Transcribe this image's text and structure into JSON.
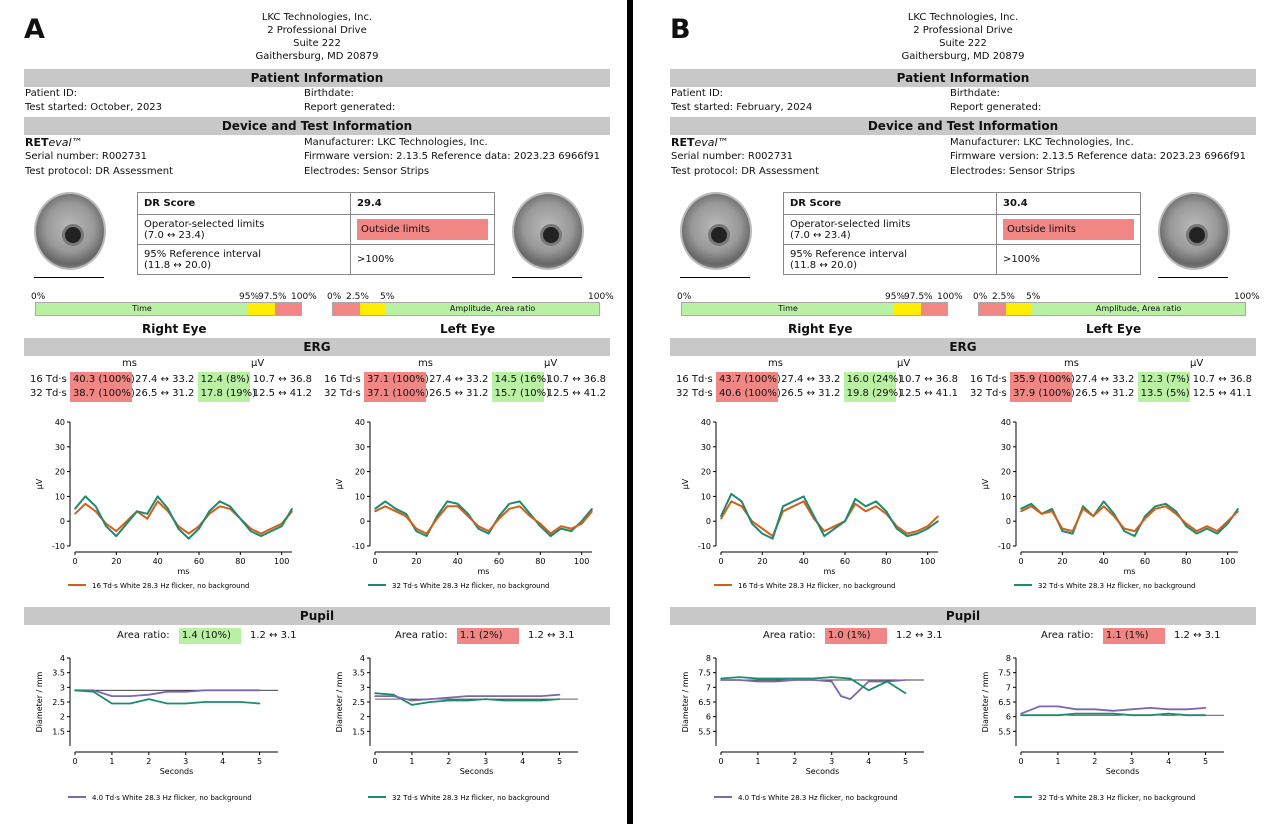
{
  "company": {
    "name": "LKC Technologies, Inc.",
    "street": "2 Professional Drive",
    "suite": "Suite 222",
    "city": "Gaithersburg, MD 20879"
  },
  "sections": {
    "patient": "Patient Information",
    "device": "Device and Test Information",
    "erg": "ERG",
    "pupil": "Pupil"
  },
  "labels": {
    "patient_id": "Patient ID:",
    "birthdate": "Birthdate:",
    "report_generated": "Report generated:",
    "device_ret": "RET",
    "device_eval": "eval",
    "device_tm": "™",
    "manufacturer": "Manufacturer: LKC Technologies, Inc.",
    "serial": "Serial number: R002731",
    "firmware": "Firmware version: 2.13.5 Reference data: 2023.23 6966f91",
    "protocol": "Test protocol: DR Assessment",
    "electrodes": "Electrodes: Sensor Strips",
    "dr_score": "DR Score",
    "op_limits": "Operator-selected limits",
    "op_limits_range": "(7.0 ↔ 23.4)",
    "ref_interval": "95% Reference interval",
    "ref_interval_range": "(11.8 ↔ 20.0)",
    "right_eye": "Right Eye",
    "left_eye": "Left Eye",
    "ms": "ms",
    "uv": "μV",
    "td16": "16 Td·s",
    "td32": "32 Td·s",
    "area_ratio": "Area ratio:",
    "ylabel_erg": "μV",
    "xlabel_erg": "ms",
    "ylabel_pupil": "Diameter / mm",
    "xlabel_pupil": "Seconds",
    "legend_r": "16 Td·s White 28.3 Hz flicker, no background",
    "legend_l": "32 Td·s White 28.3 Hz flicker, no background",
    "legend_pr": "4.0 Td·s White 28.3 Hz flicker, no background",
    "legend_pl": "32 Td·s White 28.3 Hz flicker, no background"
  },
  "scales": {
    "time": {
      "p0": "0%",
      "p95": "95%",
      "p975": "97.5%",
      "p100": "100%",
      "label": "Time"
    },
    "amp": {
      "p0": "0%",
      "p25": "2.5%",
      "p5": "5%",
      "p100": "100%",
      "label": "Amplitude, Area ratio"
    }
  },
  "panels": {
    "A": {
      "letter": "A",
      "test_started": "Test started: October, 2023",
      "dr_score": "29.4",
      "outside": "Outside limits",
      "ref_value": ">100%",
      "right": {
        "r16": {
          "ms": "40.3 (100%)",
          "ms_range": "27.4 ↔ 33.2",
          "uv": "12.4 (8%)",
          "uv_range": "10.7 ↔ 36.8"
        },
        "r32": {
          "ms": "38.7 (100%)",
          "ms_range": "26.5 ↔ 31.2",
          "uv": "17.8 (19%)",
          "uv_range": "12.5 ↔ 41.2"
        }
      },
      "left": {
        "r16": {
          "ms": "37.1 (100%)",
          "ms_range": "27.4 ↔ 33.2",
          "uv": "14.5 (16%)",
          "uv_range": "10.7 ↔ 36.8"
        },
        "r32": {
          "ms": "37.1 (100%)",
          "ms_range": "26.5 ↔ 31.2",
          "uv": "15.7 (10%)",
          "uv_range": "12.5 ↔ 41.2"
        }
      },
      "pupil_right": {
        "value": "1.4 (10%)",
        "range": "1.2 ↔ 3.1"
      },
      "pupil_left": {
        "value": "1.1 (2%)",
        "range": "1.2 ↔ 3.1"
      }
    },
    "B": {
      "letter": "B",
      "test_started": "Test started: February, 2024",
      "dr_score": "30.4",
      "outside": "Outside limits",
      "ref_value": ">100%",
      "right": {
        "r16": {
          "ms": "43.7 (100%)",
          "ms_range": "27.4 ↔ 33.2",
          "uv": "16.0 (24%)",
          "uv_range": "10.7 ↔ 36.8"
        },
        "r32": {
          "ms": "40.6 (100%)",
          "ms_range": "26.5 ↔ 31.2",
          "uv": "19.8 (29%)",
          "uv_range": "12.5 ↔ 41.1"
        }
      },
      "left": {
        "r16": {
          "ms": "35.9 (100%)",
          "ms_range": "27.4 ↔ 33.2",
          "uv": "12.3 (7%)",
          "uv_range": "10.7 ↔ 36.8"
        },
        "r32": {
          "ms": "37.9 (100%)",
          "ms_range": "26.5 ↔ 31.2",
          "uv": "13.5 (5%)",
          "uv_range": "12.5 ↔ 41.1"
        }
      },
      "pupil_right": {
        "value": "1.0 (1%)",
        "range": "1.2 ↔ 3.1"
      },
      "pupil_left": {
        "value": "1.1 (1%)",
        "range": "1.2 ↔ 3.1"
      }
    }
  },
  "colors": {
    "orange": "#d2601a",
    "teal": "#1e8a6e",
    "purple": "#7a68b0",
    "red": "#f08784",
    "green": "#b9f0a4",
    "yellow": "#ffee00"
  },
  "chart_data": [
    {
      "type": "line",
      "panel": "A",
      "eye": "right",
      "xlim": [
        0,
        105
      ],
      "ylim": [
        -10,
        40
      ],
      "x_ticks": [
        0,
        20,
        40,
        60,
        80,
        100
      ],
      "y_ticks": [
        -10,
        0,
        10,
        20,
        30,
        40
      ],
      "series": [
        {
          "name": "16 Td·s White 28.3 Hz flicker, no background",
          "color": "orange",
          "x": [
            0,
            5,
            10,
            15,
            20,
            25,
            30,
            35,
            40,
            45,
            50,
            55,
            60,
            65,
            70,
            75,
            80,
            85,
            90,
            95,
            100,
            105
          ],
          "y": [
            3,
            7,
            4,
            -1,
            -4,
            0,
            4,
            1,
            8,
            4,
            -2,
            -5,
            -2,
            3,
            6,
            5,
            1,
            -3,
            -5,
            -3,
            -1,
            4
          ]
        },
        {
          "name": "",
          "color": "teal",
          "x": [
            0,
            5,
            10,
            15,
            20,
            25,
            30,
            35,
            40,
            45,
            50,
            55,
            60,
            65,
            70,
            75,
            80,
            85,
            90,
            95,
            100,
            105
          ],
          "y": [
            5,
            10,
            6,
            -2,
            -6,
            -1,
            4,
            3,
            10,
            5,
            -3,
            -7,
            -3,
            4,
            8,
            6,
            1,
            -4,
            -6,
            -4,
            -2,
            5
          ]
        }
      ]
    },
    {
      "type": "line",
      "panel": "A",
      "eye": "left",
      "xlim": [
        0,
        105
      ],
      "ylim": [
        -10,
        40
      ],
      "x_ticks": [
        0,
        20,
        40,
        60,
        80,
        100
      ],
      "y_ticks": [
        -10,
        0,
        10,
        20,
        30,
        40
      ],
      "series": [
        {
          "name": "32 Td·s White 28.3 Hz flicker, no background",
          "color": "teal",
          "x": [
            0,
            5,
            10,
            15,
            20,
            25,
            30,
            35,
            40,
            45,
            50,
            55,
            60,
            65,
            70,
            75,
            80,
            85,
            90,
            95,
            100,
            105
          ],
          "y": [
            5,
            8,
            5,
            3,
            -4,
            -6,
            2,
            8,
            7,
            3,
            -3,
            -5,
            2,
            7,
            8,
            3,
            -2,
            -6,
            -3,
            -4,
            0,
            5
          ]
        },
        {
          "name": "",
          "color": "orange",
          "x": [
            0,
            5,
            10,
            15,
            20,
            25,
            30,
            35,
            40,
            45,
            50,
            55,
            60,
            65,
            70,
            75,
            80,
            85,
            90,
            95,
            100,
            105
          ],
          "y": [
            4,
            6,
            4,
            2,
            -3,
            -5,
            1,
            6,
            6,
            2,
            -2,
            -4,
            1,
            5,
            6,
            2,
            -1,
            -5,
            -2,
            -3,
            -1,
            4
          ]
        }
      ]
    },
    {
      "type": "line",
      "panel": "B",
      "eye": "right",
      "xlim": [
        0,
        105
      ],
      "ylim": [
        -10,
        40
      ],
      "x_ticks": [
        0,
        20,
        40,
        60,
        80,
        100
      ],
      "y_ticks": [
        -10,
        0,
        10,
        20,
        30,
        40
      ],
      "series": [
        {
          "name": "16 Td·s White 28.3 Hz flicker, no background",
          "color": "orange",
          "x": [
            0,
            5,
            10,
            15,
            20,
            25,
            30,
            35,
            40,
            45,
            50,
            55,
            60,
            65,
            70,
            75,
            80,
            85,
            90,
            95,
            100,
            105
          ],
          "y": [
            1,
            8,
            6,
            0,
            -3,
            -6,
            4,
            6,
            8,
            1,
            -4,
            -2,
            0,
            7,
            4,
            6,
            3,
            -2,
            -5,
            -4,
            -2,
            2
          ]
        },
        {
          "name": "",
          "color": "teal",
          "x": [
            0,
            5,
            10,
            15,
            20,
            25,
            30,
            35,
            40,
            45,
            50,
            55,
            60,
            65,
            70,
            75,
            80,
            85,
            90,
            95,
            100,
            105
          ],
          "y": [
            2,
            11,
            8,
            -1,
            -5,
            -7,
            6,
            8,
            10,
            2,
            -6,
            -3,
            0,
            9,
            6,
            8,
            4,
            -3,
            -6,
            -5,
            -3,
            0
          ]
        }
      ]
    },
    {
      "type": "line",
      "panel": "B",
      "eye": "left",
      "xlim": [
        0,
        105
      ],
      "ylim": [
        -10,
        40
      ],
      "x_ticks": [
        0,
        20,
        40,
        60,
        80,
        100
      ],
      "y_ticks": [
        -10,
        0,
        10,
        20,
        30,
        40
      ],
      "series": [
        {
          "name": "32 Td·s White 28.3 Hz flicker, no background",
          "color": "teal",
          "x": [
            0,
            5,
            10,
            15,
            20,
            25,
            30,
            35,
            40,
            45,
            50,
            55,
            60,
            65,
            70,
            75,
            80,
            85,
            90,
            95,
            100,
            105
          ],
          "y": [
            5,
            7,
            3,
            5,
            -4,
            -5,
            6,
            2,
            8,
            3,
            -4,
            -6,
            2,
            6,
            7,
            4,
            -2,
            -5,
            -3,
            -5,
            -1,
            5
          ]
        },
        {
          "name": "",
          "color": "orange",
          "x": [
            0,
            5,
            10,
            15,
            20,
            25,
            30,
            35,
            40,
            45,
            50,
            55,
            60,
            65,
            70,
            75,
            80,
            85,
            90,
            95,
            100,
            105
          ],
          "y": [
            4,
            6,
            3,
            4,
            -3,
            -4,
            5,
            2,
            6,
            2,
            -3,
            -4,
            1,
            5,
            6,
            3,
            -1,
            -4,
            -2,
            -4,
            0,
            4
          ]
        }
      ]
    },
    {
      "type": "line",
      "panel": "A",
      "eye": "right",
      "xlim": [
        0,
        5.5
      ],
      "ylim": [
        1,
        4
      ],
      "x_ticks": [
        0,
        1,
        2,
        3,
        4,
        5
      ],
      "y_ticks": [
        1.5,
        2,
        2.5,
        3,
        3.5,
        4
      ],
      "series": [
        {
          "name": "4.0 Td·s White 28.3 Hz flicker, no background",
          "color": "purple",
          "x": [
            0,
            0.5,
            1,
            1.5,
            2,
            2.5,
            3,
            3.5,
            4,
            4.5,
            5
          ],
          "y": [
            2.9,
            2.9,
            2.7,
            2.7,
            2.75,
            2.85,
            2.85,
            2.9,
            2.9,
            2.9,
            2.9
          ]
        },
        {
          "name": "",
          "color": "teal",
          "x": [
            0,
            0.5,
            1,
            1.5,
            2,
            2.5,
            3,
            3.5,
            4,
            4.5,
            5
          ],
          "y": [
            2.9,
            2.85,
            2.45,
            2.45,
            2.6,
            2.45,
            2.45,
            2.5,
            2.5,
            2.5,
            2.45
          ]
        }
      ]
    },
    {
      "type": "line",
      "panel": "A",
      "eye": "left",
      "xlim": [
        0,
        5.5
      ],
      "ylim": [
        1,
        4
      ],
      "x_ticks": [
        0,
        1,
        2,
        3,
        4,
        5
      ],
      "y_ticks": [
        1.5,
        2,
        2.5,
        3,
        3.5,
        4
      ],
      "series": [
        {
          "name": "32 Td·s White 28.3 Hz flicker, no background",
          "color": "teal",
          "x": [
            0,
            0.5,
            1,
            1.5,
            2,
            2.5,
            3,
            3.5,
            4,
            4.5,
            5
          ],
          "y": [
            2.8,
            2.75,
            2.4,
            2.5,
            2.55,
            2.55,
            2.6,
            2.55,
            2.55,
            2.55,
            2.6
          ]
        },
        {
          "name": "",
          "color": "purple",
          "x": [
            0,
            0.5,
            1,
            1.5,
            2,
            2.5,
            3,
            3.5,
            4,
            4.5,
            5
          ],
          "y": [
            2.7,
            2.7,
            2.55,
            2.6,
            2.65,
            2.7,
            2.7,
            2.7,
            2.7,
            2.7,
            2.75
          ]
        }
      ]
    },
    {
      "type": "line",
      "panel": "B",
      "eye": "right",
      "xlim": [
        0,
        5.5
      ],
      "ylim": [
        5,
        8
      ],
      "x_ticks": [
        0,
        1,
        2,
        3,
        4,
        5
      ],
      "y_ticks": [
        5.5,
        6,
        6.5,
        7,
        7.5,
        8
      ],
      "series": [
        {
          "name": "4.0 Td·s White 28.3 Hz flicker, no background",
          "color": "purple",
          "x": [
            0,
            0.5,
            1,
            1.5,
            2,
            2.5,
            3,
            3.25,
            3.5,
            3.75,
            4,
            4.5,
            5
          ],
          "y": [
            7.25,
            7.25,
            7.2,
            7.2,
            7.25,
            7.25,
            7.2,
            6.7,
            6.6,
            6.9,
            7.2,
            7.2,
            7.25
          ]
        },
        {
          "name": "",
          "color": "teal",
          "x": [
            0,
            0.5,
            1,
            1.5,
            2,
            2.5,
            3,
            3.5,
            4,
            4.5,
            5
          ],
          "y": [
            7.3,
            7.35,
            7.3,
            7.3,
            7.3,
            7.3,
            7.35,
            7.3,
            6.9,
            7.2,
            6.8
          ]
        }
      ]
    },
    {
      "type": "line",
      "panel": "B",
      "eye": "left",
      "xlim": [
        0,
        5.5
      ],
      "ylim": [
        5,
        8
      ],
      "x_ticks": [
        0,
        1,
        2,
        3,
        4,
        5
      ],
      "y_ticks": [
        5.5,
        6,
        6.5,
        7,
        7.5,
        8
      ],
      "series": [
        {
          "name": "32 Td·s White 28.3 Hz flicker, no background",
          "color": "teal",
          "x": [
            0,
            0.5,
            1,
            1.5,
            2,
            2.5,
            3,
            3.5,
            4,
            4.5,
            5
          ],
          "y": [
            6.05,
            6.05,
            6.05,
            6.1,
            6.1,
            6.1,
            6.05,
            6.05,
            6.1,
            6.05,
            6.05
          ]
        },
        {
          "name": "",
          "color": "purple",
          "x": [
            0,
            0.5,
            1,
            1.5,
            2,
            2.5,
            3,
            3.5,
            4,
            4.5,
            5
          ],
          "y": [
            6.1,
            6.35,
            6.35,
            6.25,
            6.25,
            6.2,
            6.25,
            6.3,
            6.25,
            6.25,
            6.3
          ]
        }
      ]
    }
  ]
}
